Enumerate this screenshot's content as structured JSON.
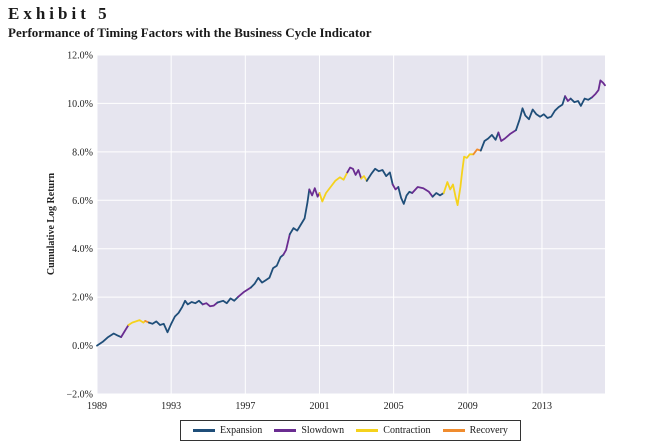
{
  "header": {
    "exhibit": "Exhibit 5",
    "title": "Performance of Timing Factors with the Business Cycle Indicator"
  },
  "chart_data": {
    "type": "line",
    "title": "Performance of Timing Factors with the Business Cycle Indicator",
    "xlabel": "",
    "ylabel": "Cumulative Log Return",
    "xlim": [
      1989,
      2016.4
    ],
    "ylim": [
      -2.0,
      12.0
    ],
    "x_ticks": [
      1989,
      1993,
      1997,
      2001,
      2005,
      2009,
      2013
    ],
    "x_tick_labels": [
      "1989",
      "1993",
      "1997",
      "2001",
      "2005",
      "2009",
      "2013"
    ],
    "y_ticks": [
      -2,
      0,
      2,
      4,
      6,
      8,
      10,
      12
    ],
    "y_tick_labels": [
      "−2.0%",
      "0.0%",
      "2.0%",
      "4.0%",
      "6.0%",
      "8.0%",
      "10.0%",
      "12.0%"
    ],
    "grid": true,
    "legend_position": "bottom-center",
    "legend": [
      "Expansion",
      "Slowdown",
      "Contraction",
      "Recovery"
    ],
    "colors": {
      "Expansion": "#1f4e79",
      "Slowdown": "#6a2c91",
      "Contraction": "#f5d21c",
      "Recovery": "#f08c2e"
    },
    "segments": [
      {
        "regime": "Expansion",
        "points": [
          [
            1989.0,
            0.0
          ],
          [
            1989.3,
            0.15
          ],
          [
            1989.6,
            0.35
          ],
          [
            1989.9,
            0.5
          ],
          [
            1990.1,
            0.42
          ],
          [
            1990.3,
            0.35
          ]
        ]
      },
      {
        "regime": "Slowdown",
        "points": [
          [
            1990.3,
            0.35
          ],
          [
            1990.5,
            0.6
          ],
          [
            1990.7,
            0.85
          ]
        ]
      },
      {
        "regime": "Contraction",
        "points": [
          [
            1990.7,
            0.85
          ],
          [
            1990.9,
            0.95
          ],
          [
            1991.1,
            1.0
          ],
          [
            1991.3,
            1.05
          ],
          [
            1991.5,
            0.95
          ],
          [
            1991.6,
            1.02
          ]
        ]
      },
      {
        "regime": "Recovery",
        "points": [
          [
            1991.6,
            1.02
          ],
          [
            1991.8,
            0.95
          ]
        ]
      },
      {
        "regime": "Expansion",
        "points": [
          [
            1991.8,
            0.95
          ],
          [
            1992.0,
            0.9
          ],
          [
            1992.2,
            1.0
          ],
          [
            1992.4,
            0.85
          ],
          [
            1992.6,
            0.9
          ],
          [
            1992.8,
            0.55
          ],
          [
            1993.0,
            0.9
          ],
          [
            1993.2,
            1.2
          ],
          [
            1993.4,
            1.35
          ],
          [
            1993.6,
            1.6
          ],
          [
            1993.75,
            1.85
          ],
          [
            1993.9,
            1.7
          ],
          [
            1994.1,
            1.8
          ],
          [
            1994.3,
            1.75
          ],
          [
            1994.5,
            1.85
          ],
          [
            1994.7,
            1.7
          ]
        ]
      },
      {
        "regime": "Slowdown",
        "points": [
          [
            1994.7,
            1.7
          ],
          [
            1994.9,
            1.75
          ],
          [
            1995.1,
            1.62
          ],
          [
            1995.3,
            1.65
          ],
          [
            1995.5,
            1.78
          ]
        ]
      },
      {
        "regime": "Expansion",
        "points": [
          [
            1995.5,
            1.78
          ],
          [
            1995.8,
            1.85
          ],
          [
            1996.0,
            1.75
          ],
          [
            1996.2,
            1.95
          ],
          [
            1996.4,
            1.85
          ],
          [
            1996.6,
            2.0
          ]
        ]
      },
      {
        "regime": "Slowdown",
        "points": [
          [
            1996.6,
            2.0
          ],
          [
            1996.9,
            2.2
          ],
          [
            1997.1,
            2.3
          ],
          [
            1997.3,
            2.4
          ]
        ]
      },
      {
        "regime": "Expansion",
        "points": [
          [
            1997.3,
            2.4
          ],
          [
            1997.5,
            2.55
          ],
          [
            1997.7,
            2.8
          ],
          [
            1997.9,
            2.6
          ],
          [
            1998.1,
            2.7
          ],
          [
            1998.3,
            2.8
          ],
          [
            1998.5,
            3.2
          ],
          [
            1998.7,
            3.3
          ],
          [
            1998.9,
            3.65
          ],
          [
            1999.05,
            3.75
          ]
        ]
      },
      {
        "regime": "Slowdown",
        "points": [
          [
            1999.05,
            3.75
          ],
          [
            1999.2,
            3.95
          ],
          [
            1999.4,
            4.6
          ]
        ]
      },
      {
        "regime": "Expansion",
        "points": [
          [
            1999.4,
            4.6
          ],
          [
            1999.6,
            4.85
          ],
          [
            1999.8,
            4.75
          ],
          [
            2000.0,
            5.0
          ],
          [
            2000.2,
            5.25
          ],
          [
            2000.35,
            5.9
          ],
          [
            2000.45,
            6.45
          ]
        ]
      },
      {
        "regime": "Slowdown",
        "points": [
          [
            2000.45,
            6.45
          ],
          [
            2000.6,
            6.2
          ],
          [
            2000.75,
            6.5
          ],
          [
            2000.9,
            6.15
          ],
          [
            2001.0,
            6.3
          ]
        ]
      },
      {
        "regime": "Contraction",
        "points": [
          [
            2001.0,
            6.3
          ],
          [
            2001.15,
            5.95
          ],
          [
            2001.35,
            6.3
          ],
          [
            2001.6,
            6.55
          ],
          [
            2001.85,
            6.8
          ],
          [
            2002.1,
            6.95
          ],
          [
            2002.3,
            6.85
          ],
          [
            2002.5,
            7.15
          ]
        ]
      },
      {
        "regime": "Slowdown",
        "points": [
          [
            2002.5,
            7.15
          ],
          [
            2002.65,
            7.35
          ],
          [
            2002.8,
            7.3
          ],
          [
            2002.95,
            7.05
          ],
          [
            2003.1,
            7.25
          ],
          [
            2003.25,
            6.9
          ]
        ]
      },
      {
        "regime": "Contraction",
        "points": [
          [
            2003.25,
            6.9
          ],
          [
            2003.4,
            7.0
          ],
          [
            2003.55,
            6.8
          ]
        ]
      },
      {
        "regime": "Expansion",
        "points": [
          [
            2003.55,
            6.8
          ],
          [
            2003.8,
            7.1
          ],
          [
            2004.0,
            7.3
          ],
          [
            2004.2,
            7.2
          ],
          [
            2004.4,
            7.25
          ],
          [
            2004.6,
            7.0
          ],
          [
            2004.8,
            7.15
          ],
          [
            2004.95,
            6.65
          ]
        ]
      },
      {
        "regime": "Slowdown",
        "points": [
          [
            2004.95,
            6.65
          ],
          [
            2005.1,
            6.45
          ],
          [
            2005.25,
            6.55
          ]
        ]
      },
      {
        "regime": "Expansion",
        "points": [
          [
            2005.25,
            6.55
          ],
          [
            2005.4,
            6.1
          ],
          [
            2005.55,
            5.85
          ],
          [
            2005.7,
            6.2
          ],
          [
            2005.85,
            6.35
          ],
          [
            2006.0,
            6.3
          ]
        ]
      },
      {
        "regime": "Slowdown",
        "points": [
          [
            2006.0,
            6.3
          ],
          [
            2006.3,
            6.55
          ],
          [
            2006.6,
            6.5
          ],
          [
            2006.9,
            6.35
          ],
          [
            2007.1,
            6.15
          ]
        ]
      },
      {
        "regime": "Expansion",
        "points": [
          [
            2007.1,
            6.15
          ],
          [
            2007.3,
            6.3
          ],
          [
            2007.5,
            6.2
          ],
          [
            2007.7,
            6.3
          ]
        ]
      },
      {
        "regime": "Contraction",
        "points": [
          [
            2007.7,
            6.3
          ],
          [
            2007.9,
            6.75
          ],
          [
            2008.05,
            6.45
          ],
          [
            2008.2,
            6.65
          ],
          [
            2008.35,
            6.1
          ],
          [
            2008.45,
            5.8
          ],
          [
            2008.6,
            6.55
          ],
          [
            2008.7,
            7.2
          ],
          [
            2008.8,
            7.8
          ],
          [
            2008.95,
            7.75
          ],
          [
            2009.1,
            7.9
          ],
          [
            2009.3,
            7.9
          ]
        ]
      },
      {
        "regime": "Recovery",
        "points": [
          [
            2009.3,
            7.9
          ],
          [
            2009.5,
            8.1
          ],
          [
            2009.7,
            8.05
          ]
        ]
      },
      {
        "regime": "Expansion",
        "points": [
          [
            2009.7,
            8.05
          ],
          [
            2009.9,
            8.45
          ],
          [
            2010.1,
            8.55
          ],
          [
            2010.3,
            8.7
          ],
          [
            2010.5,
            8.5
          ],
          [
            2010.65,
            8.8
          ]
        ]
      },
      {
        "regime": "Slowdown",
        "points": [
          [
            2010.65,
            8.8
          ],
          [
            2010.8,
            8.45
          ],
          [
            2011.0,
            8.55
          ],
          [
            2011.3,
            8.75
          ],
          [
            2011.6,
            8.9
          ]
        ]
      },
      {
        "regime": "Expansion",
        "points": [
          [
            2011.6,
            8.9
          ],
          [
            2011.8,
            9.35
          ],
          [
            2011.95,
            9.8
          ],
          [
            2012.1,
            9.5
          ],
          [
            2012.3,
            9.35
          ],
          [
            2012.5,
            9.75
          ],
          [
            2012.7,
            9.55
          ],
          [
            2012.9,
            9.45
          ],
          [
            2013.1,
            9.55
          ],
          [
            2013.3,
            9.4
          ],
          [
            2013.5,
            9.45
          ],
          [
            2013.7,
            9.7
          ],
          [
            2013.9,
            9.85
          ],
          [
            2014.1,
            9.95
          ],
          [
            2014.25,
            10.3
          ]
        ]
      },
      {
        "regime": "Slowdown",
        "points": [
          [
            2014.25,
            10.3
          ],
          [
            2014.4,
            10.1
          ],
          [
            2014.55,
            10.2
          ]
        ]
      },
      {
        "regime": "Expansion",
        "points": [
          [
            2014.55,
            10.2
          ],
          [
            2014.75,
            10.05
          ],
          [
            2014.95,
            10.1
          ],
          [
            2015.1,
            9.9
          ],
          [
            2015.3,
            10.2
          ],
          [
            2015.5,
            10.15
          ],
          [
            2015.7,
            10.25
          ]
        ]
      },
      {
        "regime": "Slowdown",
        "points": [
          [
            2015.7,
            10.25
          ],
          [
            2015.9,
            10.4
          ],
          [
            2016.05,
            10.55
          ],
          [
            2016.15,
            10.95
          ],
          [
            2016.3,
            10.85
          ],
          [
            2016.4,
            10.75
          ]
        ]
      }
    ]
  }
}
